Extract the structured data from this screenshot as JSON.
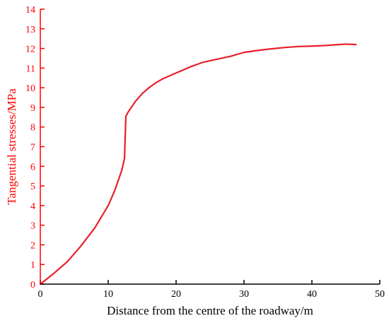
{
  "chart_data": {
    "type": "line",
    "title": "",
    "xlabel": "Distance from the centre of the roadway/m",
    "ylabel": "Tangential stresses/MPa",
    "xlim": [
      0,
      50
    ],
    "ylim": [
      0,
      14
    ],
    "xticks": [
      0,
      10,
      20,
      30,
      40,
      50
    ],
    "yticks": [
      0,
      1,
      2,
      3,
      4,
      5,
      6,
      7,
      8,
      9,
      10,
      11,
      12,
      13,
      14
    ],
    "grid": false,
    "colors": {
      "y_axis": "#ff0000",
      "x_axis": "#000000",
      "line": "#e8202a",
      "ylabel": "#ff0000",
      "xlabel": "#000000"
    },
    "series": [
      {
        "x": [
          0,
          2,
          4,
          6,
          8,
          10,
          11,
          12,
          12.4,
          12.6,
          13,
          14,
          15,
          16,
          17,
          18,
          20,
          22,
          24,
          26,
          28,
          30,
          32,
          34,
          36,
          38,
          40,
          42,
          44,
          45,
          46.5
        ],
        "y": [
          0,
          0.55,
          1.15,
          1.95,
          2.85,
          4.0,
          4.8,
          5.8,
          6.4,
          8.55,
          8.8,
          9.3,
          9.7,
          10.0,
          10.25,
          10.45,
          10.75,
          11.05,
          11.3,
          11.45,
          11.6,
          11.8,
          11.9,
          11.98,
          12.05,
          12.1,
          12.12,
          12.15,
          12.2,
          12.22,
          12.2
        ]
      }
    ]
  }
}
